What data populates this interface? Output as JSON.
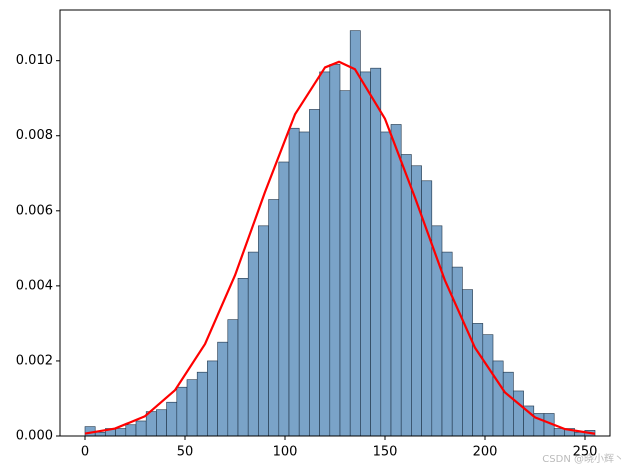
{
  "chart_data": {
    "type": "histogram",
    "bins": [
      0,
      5.1,
      10.2,
      15.3,
      20.4,
      25.5,
      30.6,
      35.7,
      40.8,
      45.9,
      51,
      56.1,
      61.2,
      66.3,
      71.4,
      76.5,
      81.6,
      86.7,
      91.8,
      96.9,
      102,
      107.1,
      112.2,
      117.3,
      122.4,
      127.5,
      132.6,
      137.7,
      142.8,
      147.9,
      153,
      158.1,
      163.2,
      168.3,
      173.4,
      178.5,
      183.6,
      188.7,
      193.8,
      198.9,
      204,
      209.1,
      214.2,
      219.3,
      224.4,
      229.5,
      234.6,
      239.7,
      244.8,
      249.9,
      255
    ],
    "values": [
      0.00025,
      0.0001,
      0.0002,
      0.0002,
      0.0003,
      0.0004,
      0.00065,
      0.0007,
      0.0009,
      0.0013,
      0.0015,
      0.0017,
      0.002,
      0.0025,
      0.0031,
      0.0042,
      0.0049,
      0.0056,
      0.0063,
      0.0073,
      0.0082,
      0.0081,
      0.0087,
      0.0097,
      0.0099,
      0.0092,
      0.0108,
      0.0097,
      0.0098,
      0.0081,
      0.0083,
      0.0075,
      0.0072,
      0.0068,
      0.0056,
      0.0049,
      0.0045,
      0.0039,
      0.003,
      0.0027,
      0.002,
      0.0017,
      0.0012,
      0.0008,
      0.0006,
      0.0006,
      0.0002,
      0.0002,
      0.0001,
      0.00015
    ],
    "color": "#7aa3c8",
    "edgecolor": "#1f3347",
    "overlay": {
      "type": "line",
      "color": "#ff0000",
      "x": [
        0,
        15,
        30,
        45,
        60,
        75,
        90,
        105,
        120,
        127,
        135,
        150,
        165,
        180,
        195,
        210,
        225,
        240,
        255
      ],
      "values": [
        6.45e-05,
        0.000198,
        0.000527,
        0.00122,
        0.00245,
        0.00428,
        0.0065,
        0.00857,
        0.00982,
        0.00997,
        0.00977,
        0.00845,
        0.00635,
        0.00414,
        0.00235,
        0.00116,
        0.000496,
        0.000184,
        5.96e-05
      ]
    },
    "xlim": [
      -12.5,
      262.5
    ],
    "xticks": [
      0,
      50,
      100,
      150,
      200,
      250
    ],
    "ylim": [
      0,
      0.01135
    ],
    "yticks": [
      {
        "value": 0,
        "label": "0.000"
      },
      {
        "value": 0.002,
        "label": "0.002"
      },
      {
        "value": 0.004,
        "label": "0.004"
      },
      {
        "value": 0.006,
        "label": "0.006"
      },
      {
        "value": 0.008,
        "label": "0.008"
      },
      {
        "value": 0.01,
        "label": "0.010"
      }
    ],
    "watermark": "CSDN @晓小辉丶"
  }
}
